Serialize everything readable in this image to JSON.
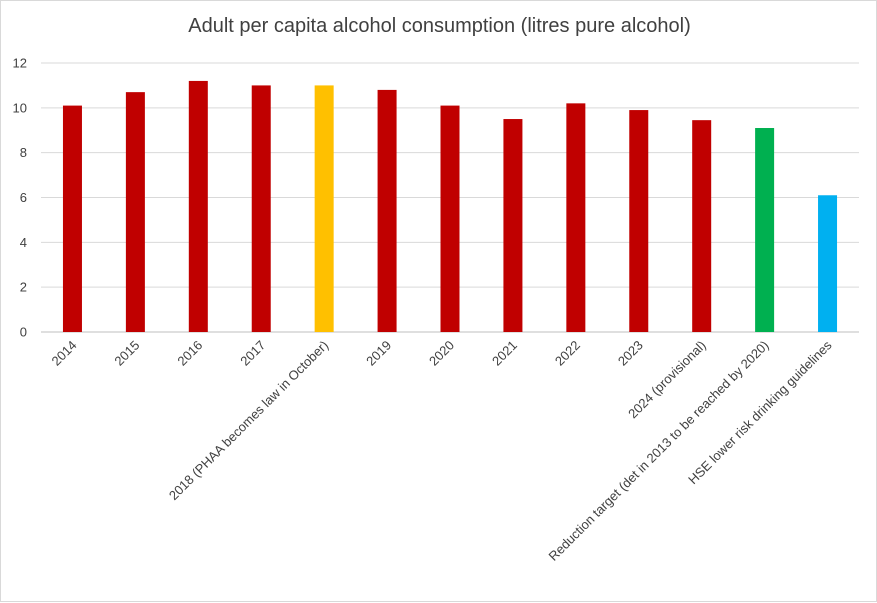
{
  "chart_data": {
    "type": "bar",
    "title": "Adult per capita alcohol consumption (litres pure alcohol)",
    "xlabel": "",
    "ylabel": "",
    "ylim": [
      0,
      12
    ],
    "yticks": [
      0,
      2,
      4,
      6,
      8,
      10,
      12
    ],
    "grid": true,
    "legend": "none",
    "categories": [
      "2014",
      "2015",
      "2016",
      "2017",
      "2018 (PHAA becomes law in October)",
      "2019",
      "2020",
      "2021",
      "2022",
      "2023",
      "2024 (provisional)",
      "Reduction target (det in 2013 to be reached by 2020)",
      "HSE lower risk drinking guidelines"
    ],
    "values": [
      10.1,
      10.7,
      11.2,
      11.0,
      11.0,
      10.8,
      10.1,
      9.5,
      10.2,
      9.9,
      9.45,
      9.1,
      6.1
    ],
    "colors": [
      "#c00000",
      "#c00000",
      "#c00000",
      "#c00000",
      "#ffc000",
      "#c00000",
      "#c00000",
      "#c00000",
      "#c00000",
      "#c00000",
      "#c00000",
      "#00b050",
      "#00b0f0"
    ]
  }
}
